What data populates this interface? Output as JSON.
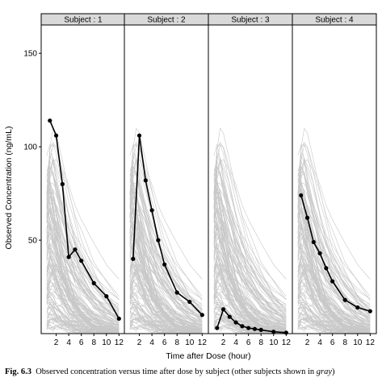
{
  "chart_data": {
    "type": "line",
    "facet_label_prefix": "Subject : ",
    "panels": [
      {
        "subject": "1",
        "x": [
          1,
          2,
          3,
          4,
          5,
          6,
          8,
          10,
          12
        ],
        "y": [
          114,
          106,
          80,
          41,
          45,
          39,
          27,
          20,
          8
        ]
      },
      {
        "subject": "2",
        "x": [
          1,
          2,
          3,
          4,
          5,
          6,
          8,
          10,
          12
        ],
        "y": [
          40,
          106,
          82,
          66,
          50,
          37,
          22,
          17,
          10
        ]
      },
      {
        "subject": "3",
        "x": [
          1,
          2,
          3,
          4,
          5,
          6,
          7,
          8,
          10,
          12
        ],
        "y": [
          3,
          13,
          9,
          6,
          4,
          3,
          2.5,
          2,
          1,
          0.5
        ]
      },
      {
        "subject": "4",
        "x": [
          1,
          2,
          3,
          4,
          5,
          6,
          8,
          10,
          12
        ],
        "y": [
          74,
          62,
          49,
          43,
          35,
          28,
          18,
          14,
          12
        ]
      }
    ],
    "background_series_color": "#c8c8c8",
    "subject_series_color": "#000000",
    "xlabel": "Time after Dose (hour)",
    "ylabel": "Observed Concentration (ng/mL)",
    "xticks": [
      2,
      4,
      6,
      8,
      10,
      12
    ],
    "yticks": [
      50,
      100,
      150
    ],
    "xlim": [
      0,
      12.6
    ],
    "ylim": [
      0,
      160
    ],
    "grid": false,
    "legend": "none"
  },
  "caption": {
    "label": "Fig. 6.3",
    "text_main": "Observed concentration versus time after dose by subject (other subjects shown in ",
    "text_italic": "gray",
    "text_end": ")"
  }
}
